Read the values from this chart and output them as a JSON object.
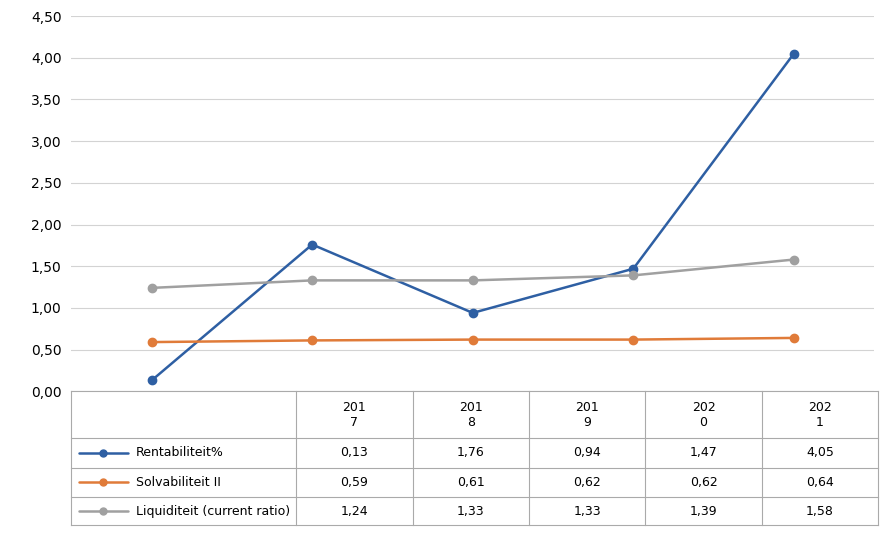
{
  "years": [
    "2017",
    "2018",
    "2019",
    "2020",
    "2021"
  ],
  "rentabiliteit": [
    0.13,
    1.76,
    0.94,
    1.47,
    4.05
  ],
  "solvabiliteit": [
    0.59,
    0.61,
    0.62,
    0.62,
    0.64
  ],
  "liquiditeit": [
    1.24,
    1.33,
    1.33,
    1.39,
    1.58
  ],
  "rentabiliteit_color": "#2E5FA3",
  "solvabiliteit_color": "#E07B39",
  "liquiditeit_color": "#A0A0A0",
  "ylim": [
    0,
    4.5
  ],
  "yticks": [
    0.0,
    0.5,
    1.0,
    1.5,
    2.0,
    2.5,
    3.0,
    3.5,
    4.0,
    4.5
  ],
  "ytick_labels": [
    "0,00",
    "0,50",
    "1,00",
    "1,50",
    "2,00",
    "2,50",
    "3,00",
    "3,50",
    "4,00",
    "4,50"
  ],
  "table_values": {
    "Rentabiliteit%": [
      "0,13",
      "1,76",
      "0,94",
      "1,47",
      "4,05"
    ],
    "Solvabiliteit II": [
      "0,59",
      "0,61",
      "0,62",
      "0,62",
      "0,64"
    ],
    "Liquiditeit (current ratio)": [
      "1,24",
      "1,33",
      "1,33",
      "1,39",
      "1,58"
    ]
  },
  "background_color": "#FFFFFF",
  "grid_color": "#D3D3D3",
  "border_color": "#AAAAAA"
}
